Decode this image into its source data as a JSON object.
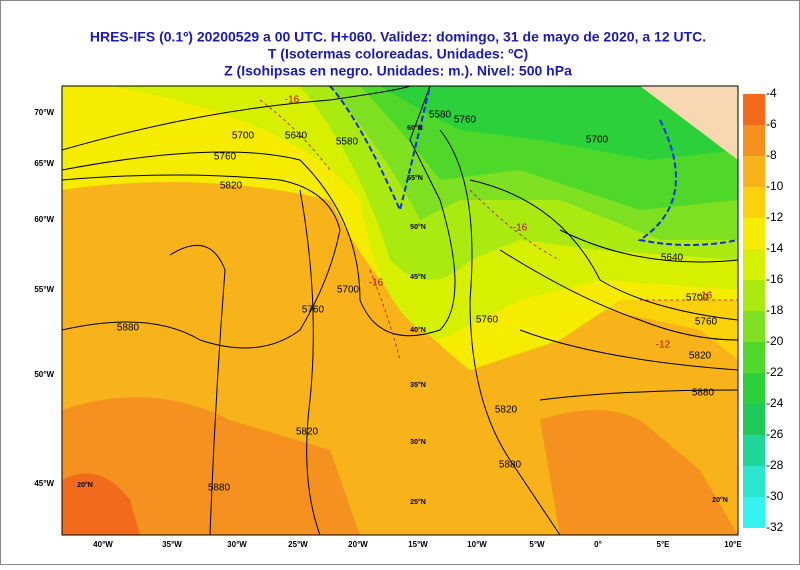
{
  "header": {
    "lines": [
      "HRES-IFS (0.1º) 20200529 a 00 UTC.  H+060.  Validez: domingo, 31 de mayo de 2020,  a  12 UTC.",
      "T (Isotermas coloreadas. Unidades: ºC)",
      "Z (Isohipsas en negro. Unidades: m.).   Nivel: 500 hPa"
    ]
  },
  "colorbar": {
    "levels": [
      -4,
      -6,
      -8,
      -10,
      -12,
      -14,
      -16,
      -18,
      -20,
      -22,
      -24,
      -26,
      -28,
      -30,
      -32
    ],
    "colors": [
      "#f26b1d",
      "#f5921f",
      "#f8b21a",
      "#fbd10b",
      "#f6ec00",
      "#d6f000",
      "#aaea10",
      "#7ee020",
      "#4fd82a",
      "#2bd03a",
      "#22c85a",
      "#1fd598",
      "#2ae6cc",
      "#33f2f0"
    ]
  },
  "axes": {
    "left": [
      "70°W",
      "65°W",
      "60°W",
      "55°W",
      "50°W",
      "45°W"
    ],
    "bottom": [
      "40°W",
      "35°W",
      "30°W",
      "25°W",
      "20°W",
      "15°W",
      "10°W",
      "5°W",
      "0°",
      "5°E",
      "10°E"
    ]
  },
  "grid_labels": [
    "60°N",
    "55°N",
    "50°N",
    "45°N",
    "40°N",
    "35°N",
    "30°N",
    "25°N",
    "20°N",
    "20°N"
  ],
  "contour_labels": [
    "5700",
    "5640",
    "5760",
    "5820",
    "5580",
    "5700",
    "5760",
    "5880",
    "5820",
    "5880",
    "5580",
    "5760",
    "5700",
    "5640",
    "5700",
    "5760",
    "5820",
    "5880",
    "5820",
    "5880",
    "5760"
  ],
  "isotherm_labels": [
    "-16",
    "-16",
    "-16",
    "-16",
    "-12"
  ]
}
